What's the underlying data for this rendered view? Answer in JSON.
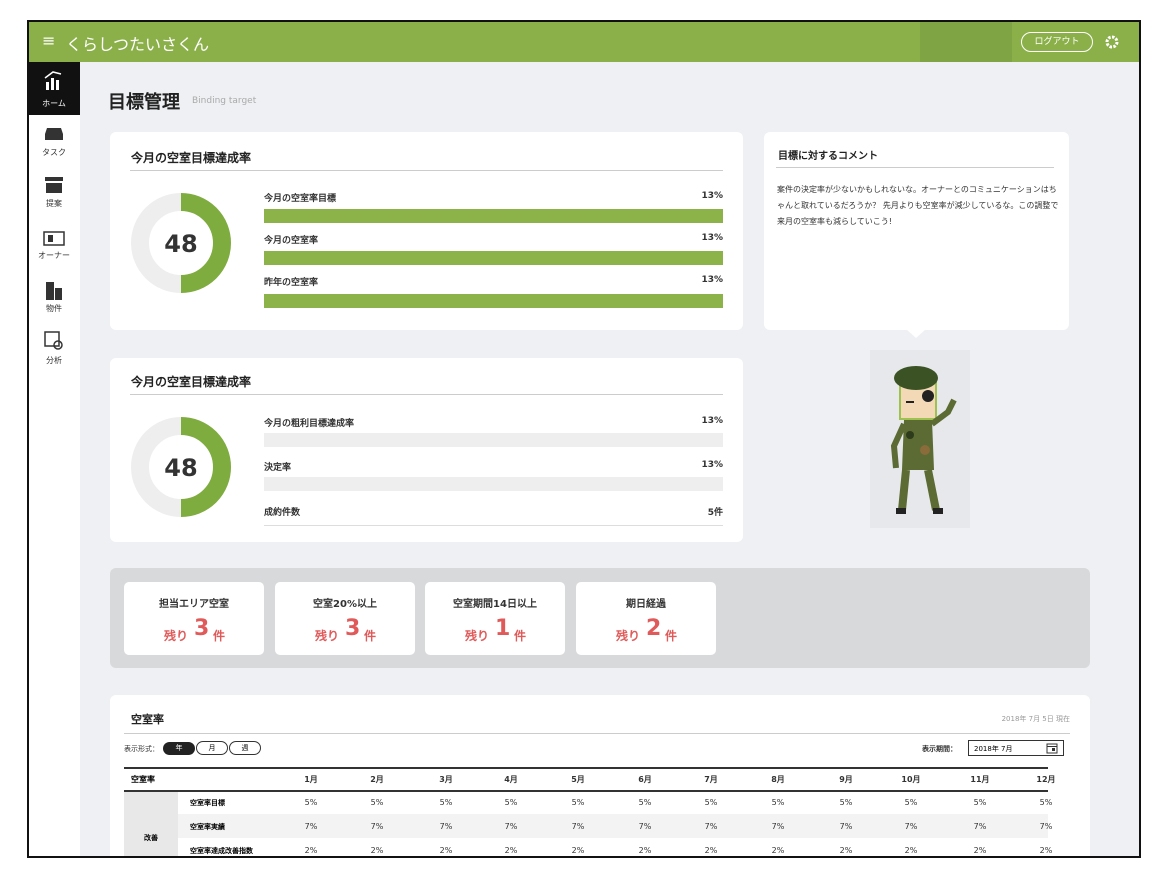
{
  "header": {
    "menu_icon": "≡",
    "logo": "くらしつたいさくん",
    "logout": "ログアウト"
  },
  "sidebar": {
    "items": [
      "ホーム",
      "タスク",
      "提案",
      "オーナー",
      "物件",
      "分析"
    ]
  },
  "page": {
    "title": "目標管理",
    "subtitle": "Binding target"
  },
  "vacancy_card": {
    "title": "今月の空室目標達成率",
    "donut": "48",
    "rows": [
      {
        "label": "今月の空室率目標",
        "value": "13%"
      },
      {
        "label": "今月の空室率",
        "value": "13%"
      },
      {
        "label": "昨年の空室率",
        "value": "13%"
      }
    ]
  },
  "comment_card": {
    "title": "目標に対するコメント",
    "text": "案件の決定率が少ないかもしれないな。オーナーとのコミュニケーションはちゃんと取れているだろうか？ 先月よりも空室率が減少しているな。この調整で来月の空室率も減らしていこう!"
  },
  "profit_card": {
    "title": "今月の空室目標達成率",
    "donut": "48",
    "rows": [
      {
        "label": "今月の粗利目標達成率",
        "value": "13%"
      },
      {
        "label": "決定率",
        "value": "13%"
      },
      {
        "label": "成約件数",
        "value": "5件"
      }
    ]
  },
  "stats": [
    {
      "label": "担当エリア空室",
      "prefix": "残り",
      "count": "3",
      "unit": "件"
    },
    {
      "label": "空室20%以上",
      "prefix": "残り",
      "count": "3",
      "unit": "件"
    },
    {
      "label": "空室期間14日以上",
      "prefix": "残り",
      "count": "1",
      "unit": "件"
    },
    {
      "label": "期日経過",
      "prefix": "残り",
      "count": "2",
      "unit": "件"
    }
  ],
  "table": {
    "title": "空室率",
    "as_of": "2018年 7月 5日 現在",
    "format_label": "表示形式：",
    "formats": [
      "年",
      "月",
      "週"
    ],
    "period_label": "表示期間：",
    "period": "2018年 7月",
    "columns": [
      "空室率",
      "1月",
      "2月",
      "3月",
      "4月",
      "5月",
      "6月",
      "7月",
      "8月",
      "9月",
      "10月",
      "11月",
      "12月"
    ],
    "group": "改善",
    "rows": [
      {
        "label": "空室率目標",
        "cells": [
          "5%",
          "5%",
          "5%",
          "5%",
          "5%",
          "5%",
          "5%",
          "5%",
          "5%",
          "5%",
          "5%",
          "5%"
        ]
      },
      {
        "label": "空室率実績",
        "cells": [
          "7%",
          "7%",
          "7%",
          "7%",
          "7%",
          "7%",
          "7%",
          "7%",
          "7%",
          "7%",
          "7%",
          "7%"
        ]
      },
      {
        "label": "空室率達成改善指数",
        "cells": [
          "2%",
          "2%",
          "2%",
          "2%",
          "2%",
          "2%",
          "2%",
          "2%",
          "2%",
          "2%",
          "2%",
          "2%"
        ]
      }
    ]
  }
}
